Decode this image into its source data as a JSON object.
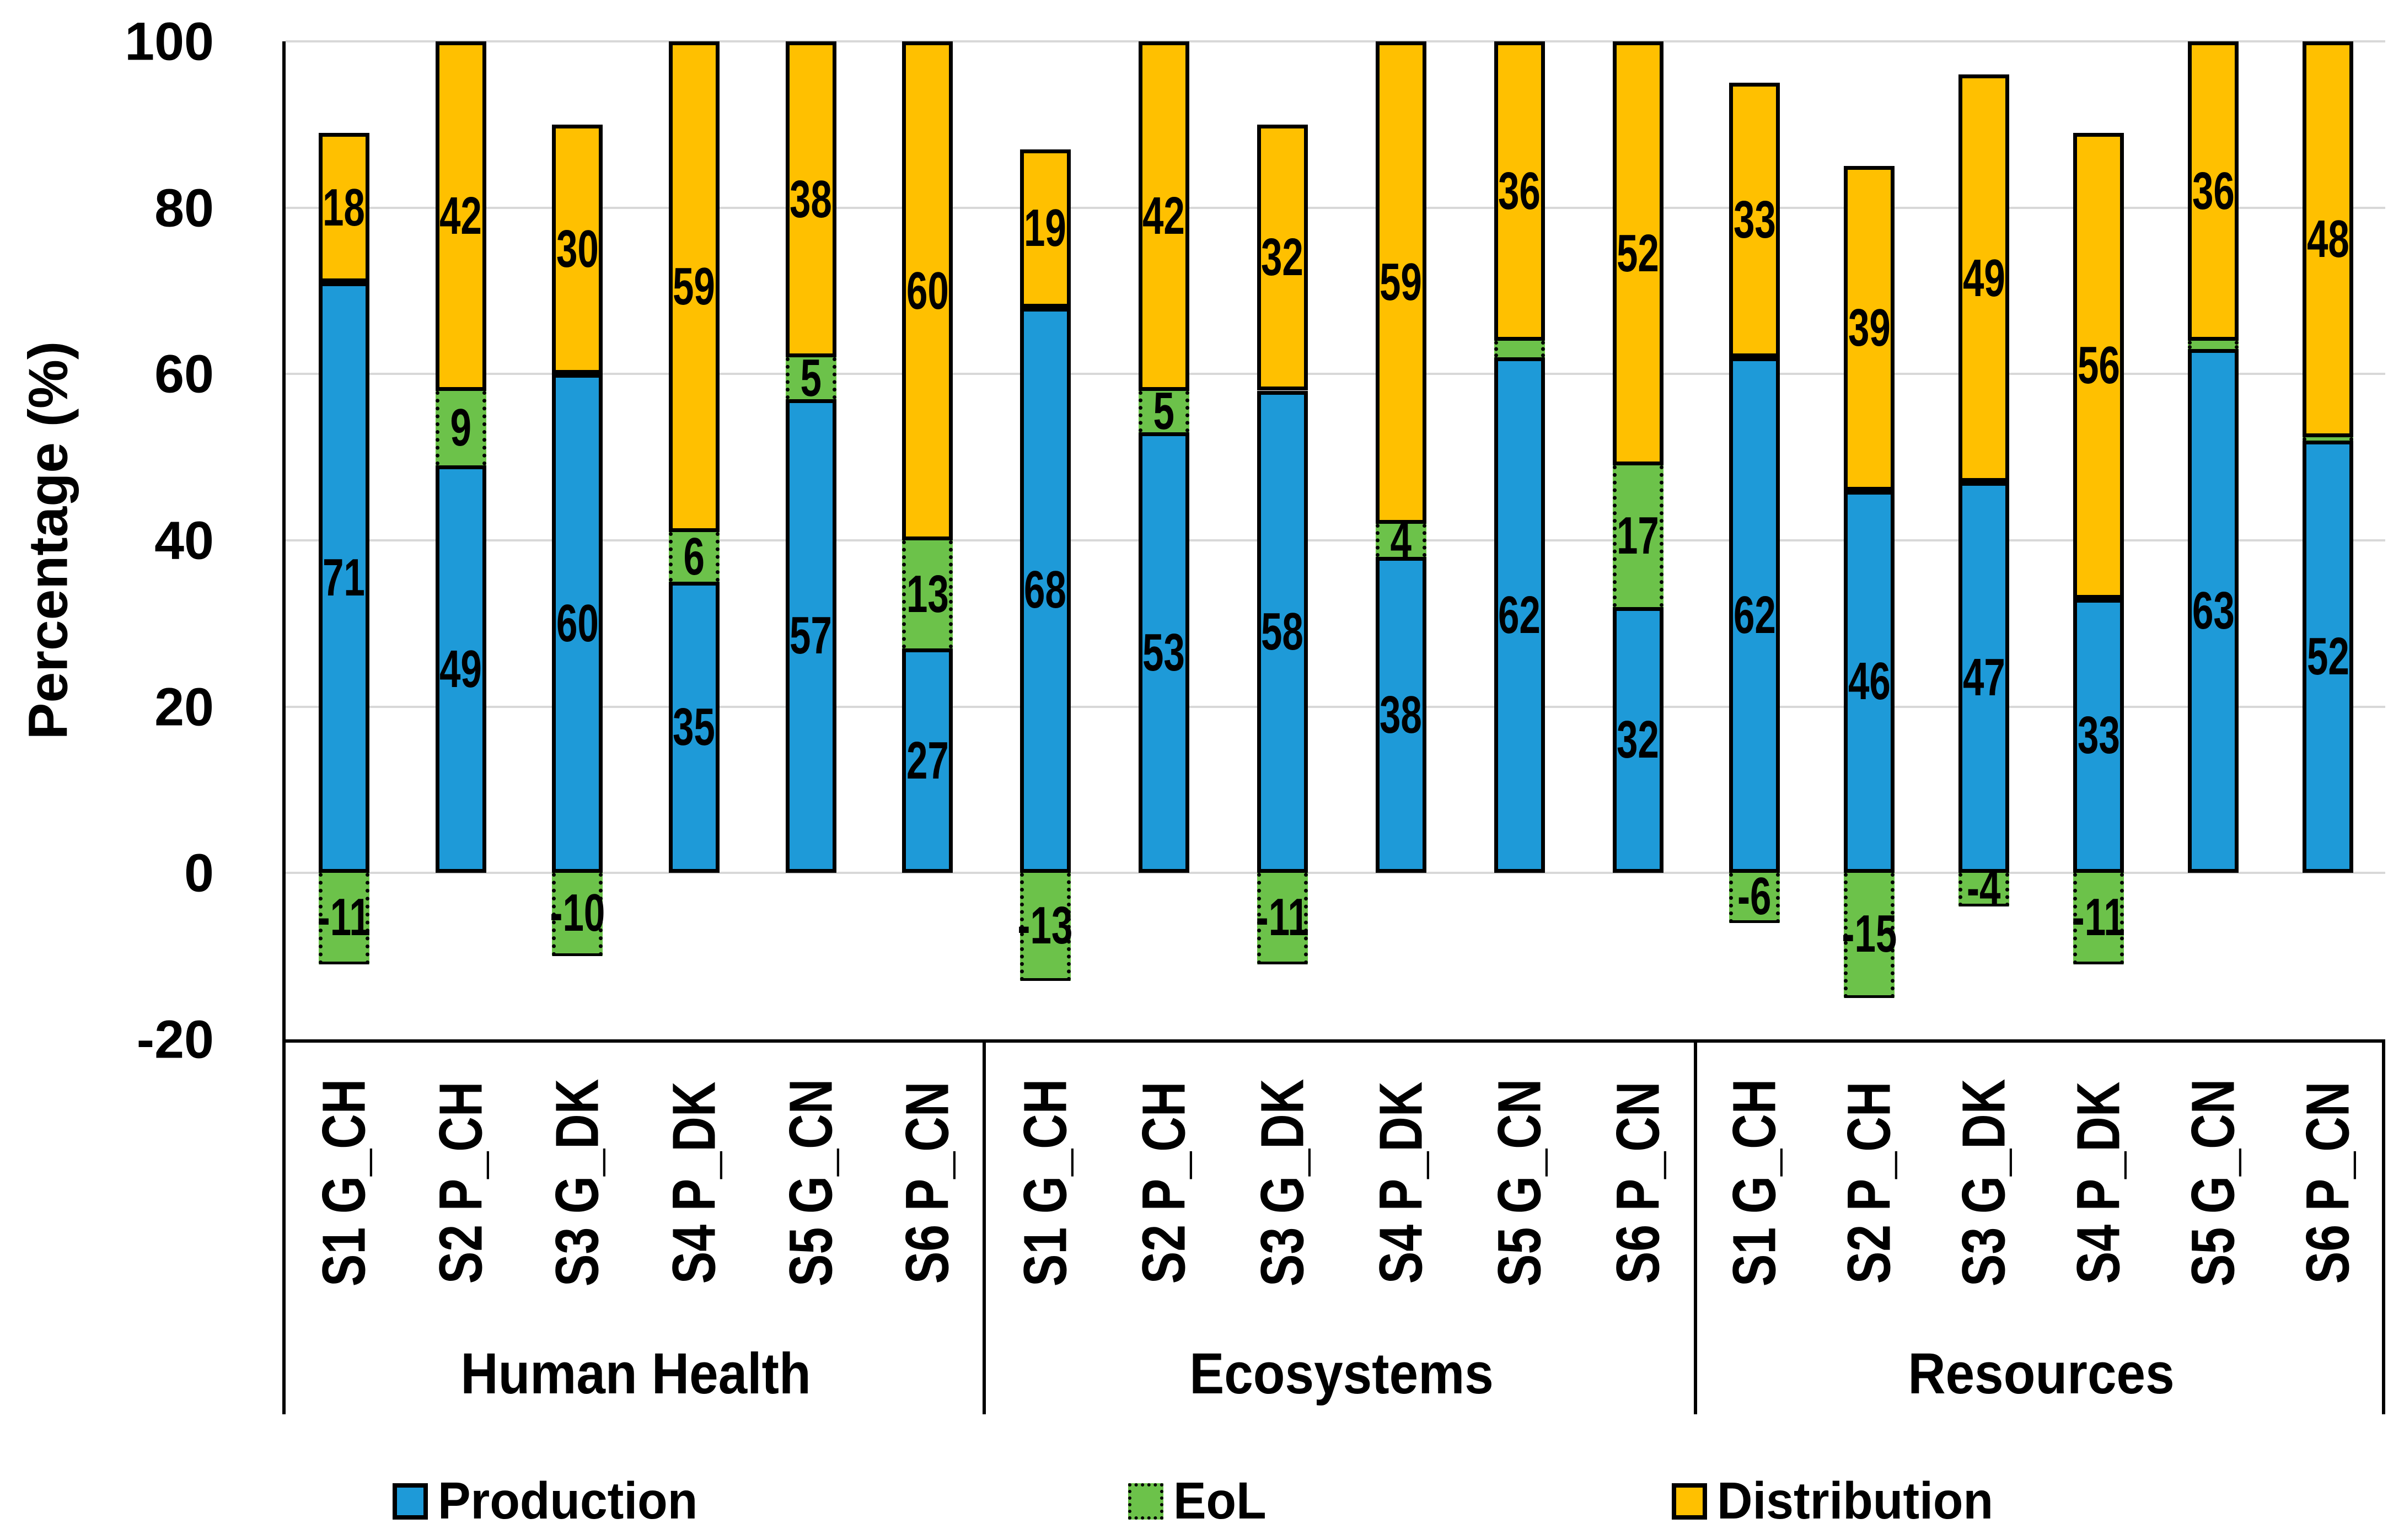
{
  "chart_data": {
    "type": "bar",
    "stacked": true,
    "title": "",
    "ylabel": "Percentage (%)",
    "ylim": [
      -20,
      100
    ],
    "yticks": [
      100,
      80,
      60,
      40,
      20,
      0,
      -20
    ],
    "grid": true,
    "legend_position": "bottom",
    "label_min_abs": 4,
    "series": [
      {
        "key": "production",
        "name": "Production",
        "color": "#1E9AD8",
        "border": "solid"
      },
      {
        "key": "eol",
        "name": "EoL",
        "color": "#6CC24A",
        "border": "dotted"
      },
      {
        "key": "distribution",
        "name": "Distribution",
        "color": "#FFC000",
        "border": "solid"
      }
    ],
    "groups": [
      {
        "label": "Human Health",
        "bars": [
          {
            "category": "S1 G_CH",
            "production": 71,
            "eol": -11,
            "distribution": 18
          },
          {
            "category": "S2 P_CH",
            "production": 49,
            "eol": 9,
            "distribution": 42
          },
          {
            "category": "S3 G_DK",
            "production": 60,
            "eol": -10,
            "distribution": 30
          },
          {
            "category": "S4 P_DK",
            "production": 35,
            "eol": 6,
            "distribution": 59
          },
          {
            "category": "S5 G_CN",
            "production": 57,
            "eol": 5,
            "distribution": 38
          },
          {
            "category": "S6 P_CN",
            "production": 27,
            "eol": 13,
            "distribution": 60
          }
        ]
      },
      {
        "label": "Ecosystems",
        "bars": [
          {
            "category": "S1 G_CH",
            "production": 68,
            "eol": -13,
            "distribution": 19
          },
          {
            "category": "S2 P_CH",
            "production": 53,
            "eol": 5,
            "distribution": 42
          },
          {
            "category": "S3 G_DK",
            "production": 58,
            "eol": -11,
            "distribution": 32
          },
          {
            "category": "S4 P_DK",
            "production": 38,
            "eol": 4,
            "distribution": 59
          },
          {
            "category": "S5 G_CN",
            "production": 62,
            "eol": 2,
            "distribution": 36
          },
          {
            "category": "S6 P_CN",
            "production": 32,
            "eol": 17,
            "distribution": 52
          }
        ]
      },
      {
        "label": "Resources",
        "bars": [
          {
            "category": "S1 G_CH",
            "production": 62,
            "eol": -6,
            "distribution": 33
          },
          {
            "category": "S2 P_CH",
            "production": 46,
            "eol": -15,
            "distribution": 39
          },
          {
            "category": "S3 G_DK",
            "production": 47,
            "eol": -4,
            "distribution": 49
          },
          {
            "category": "S4 P_DK",
            "production": 33,
            "eol": -11,
            "distribution": 56
          },
          {
            "category": "S5 G_CN",
            "production": 63,
            "eol": 1,
            "distribution": 36
          },
          {
            "category": "S6 P_CN",
            "production": 52,
            "eol": 0.4,
            "distribution": 48
          }
        ]
      }
    ]
  },
  "colors": {
    "gridline": "#D8D8D8",
    "axis": "#000000",
    "background": "#FFFFFF",
    "label": "#000000"
  }
}
